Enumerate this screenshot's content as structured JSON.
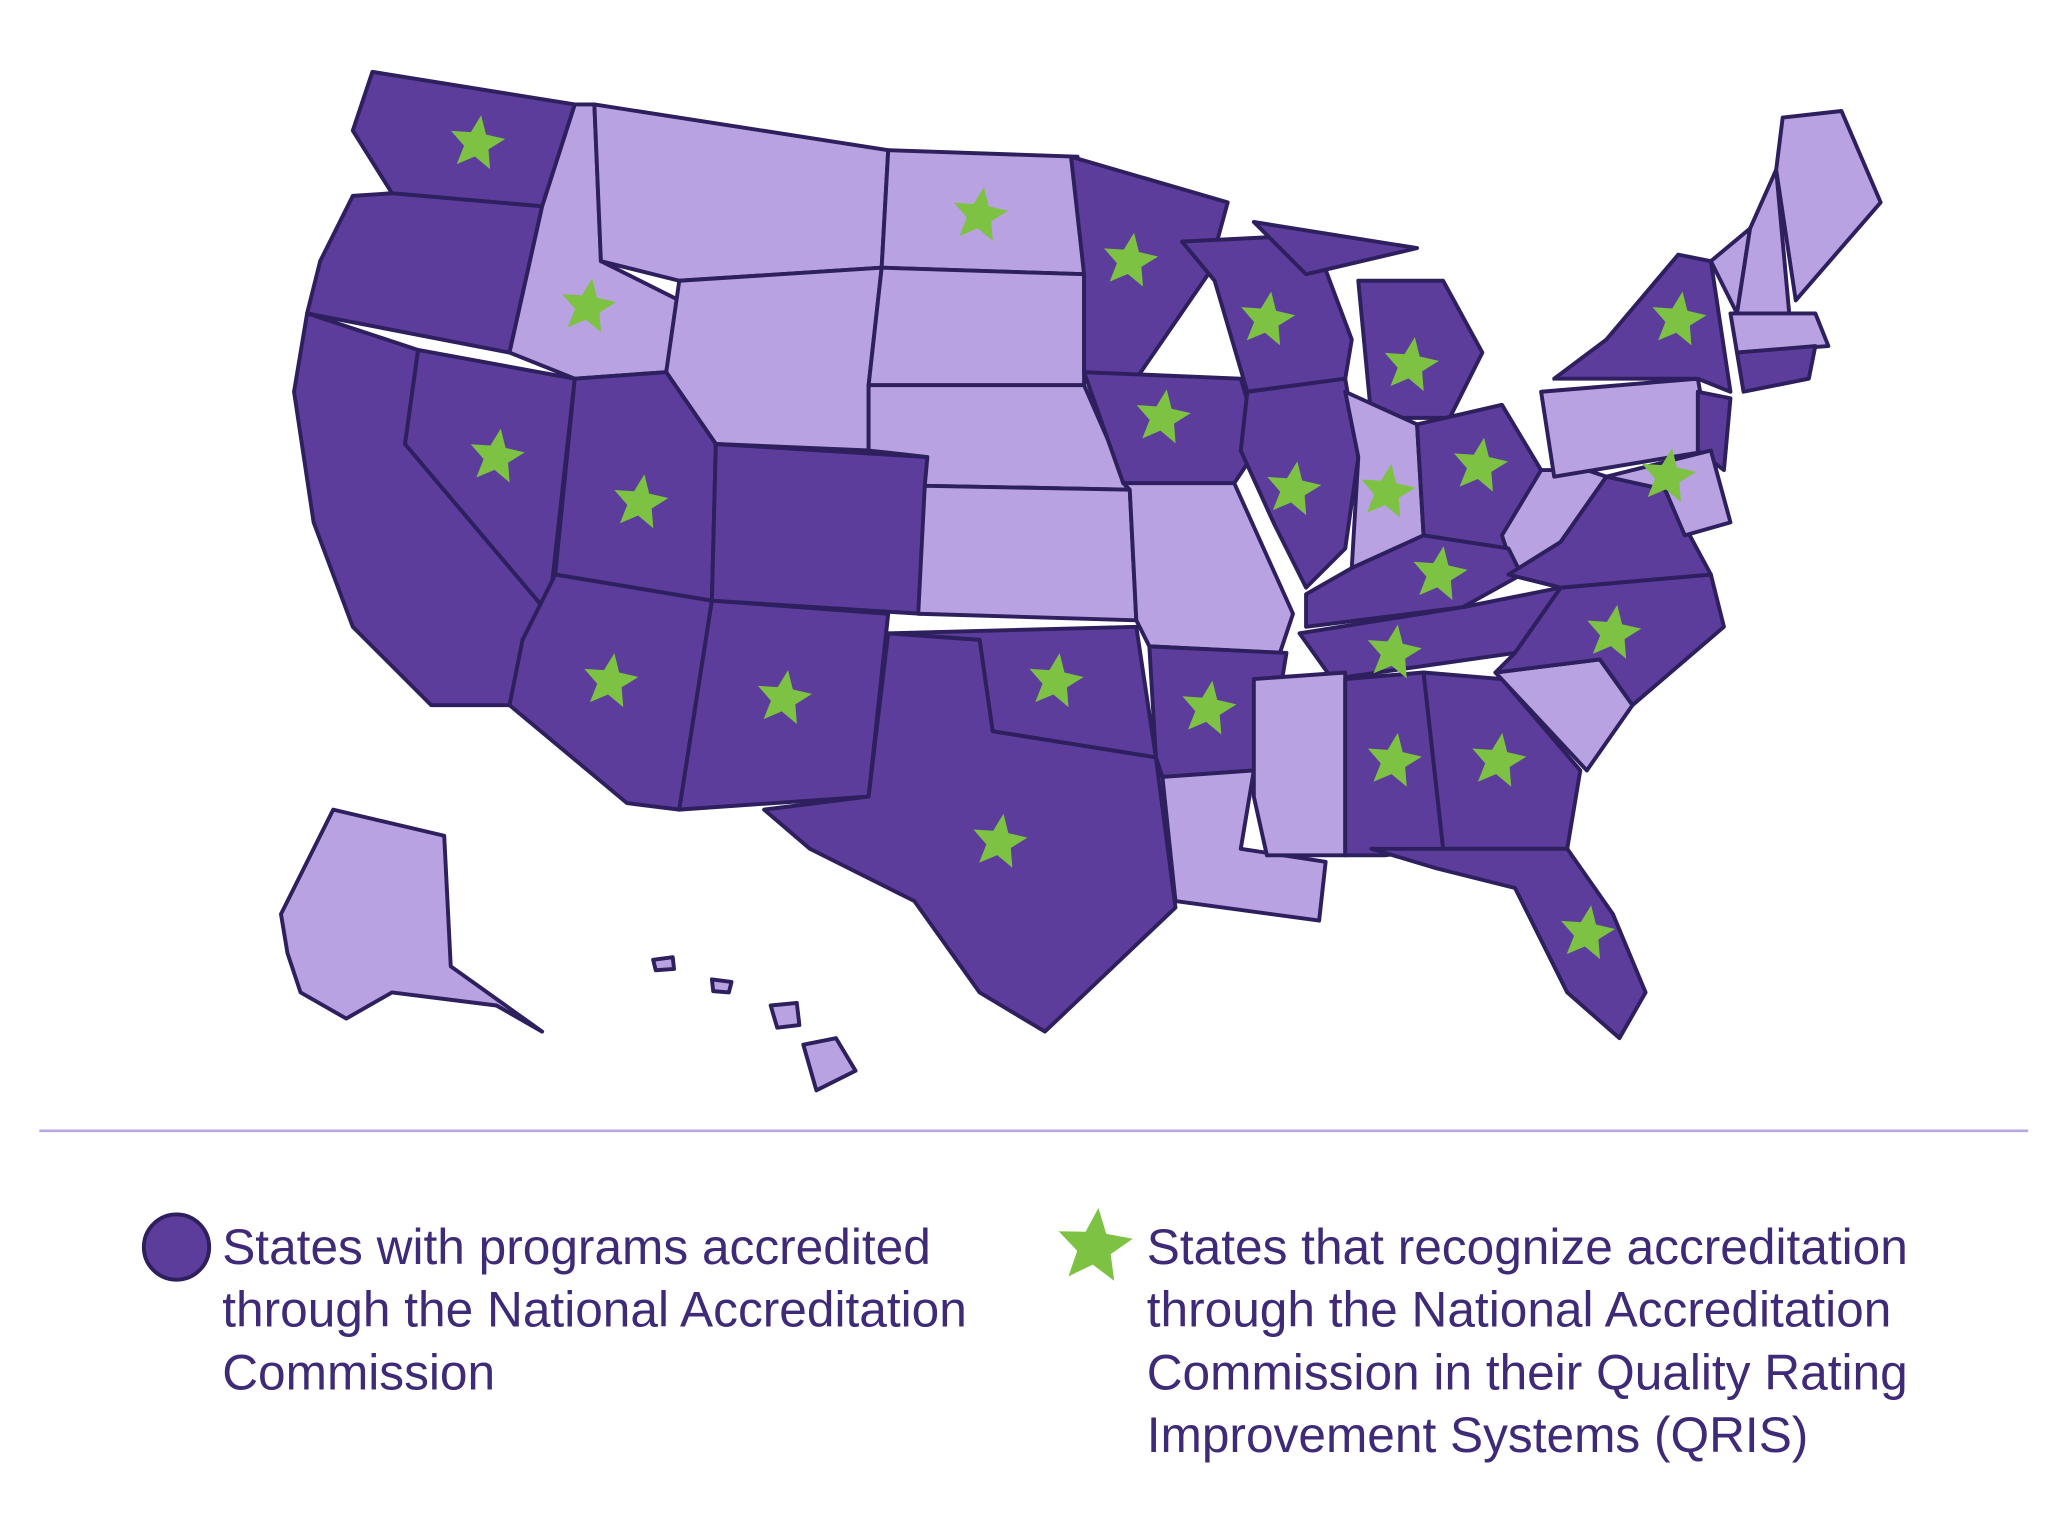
{
  "legend": {
    "items": [
      {
        "lines": [
          "States with programs accredited",
          "through the National Accreditation",
          "Commission"
        ]
      },
      {
        "lines": [
          "States that recognize accreditation",
          "through the National Accreditation",
          "Commission in their Quality Rating",
          "Improvement Systems (QRIS)"
        ]
      }
    ]
  }
}
